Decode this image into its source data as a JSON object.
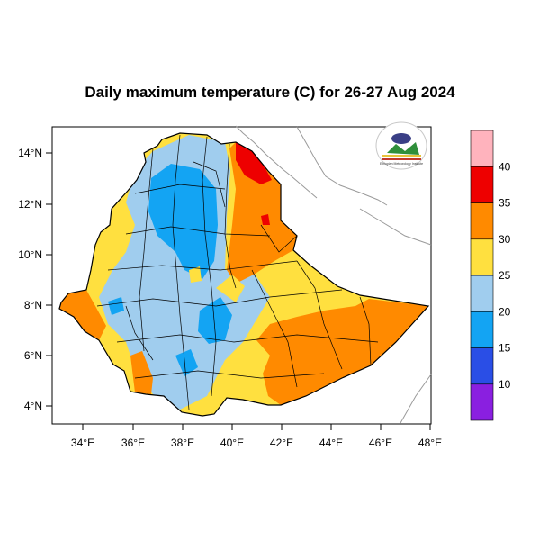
{
  "title": "Daily maximum temperature (C) for 26-27 Aug 2024",
  "map": {
    "x_ticks": [
      "34°E",
      "36°E",
      "38°E",
      "40°E",
      "42°E",
      "44°E",
      "46°E",
      "48°E"
    ],
    "y_ticks": [
      "14°N",
      "12°N",
      "10°N",
      "8°N",
      "6°N",
      "4°N"
    ]
  },
  "legend": {
    "bins": [
      {
        "color": "#8a1fe0"
      },
      {
        "color": "#2a4ee6"
      },
      {
        "color": "#13a4f3"
      },
      {
        "color": "#a0cdee"
      },
      {
        "color": "#ffe03f"
      },
      {
        "color": "#ff8a00"
      },
      {
        "color": "#ee0000"
      },
      {
        "color": "#ffb3bd"
      }
    ],
    "labels": [
      "10",
      "15",
      "20",
      "25",
      "30",
      "35",
      "40"
    ]
  },
  "logo": {
    "agency": "Ethiopian Meteorology Institute"
  }
}
